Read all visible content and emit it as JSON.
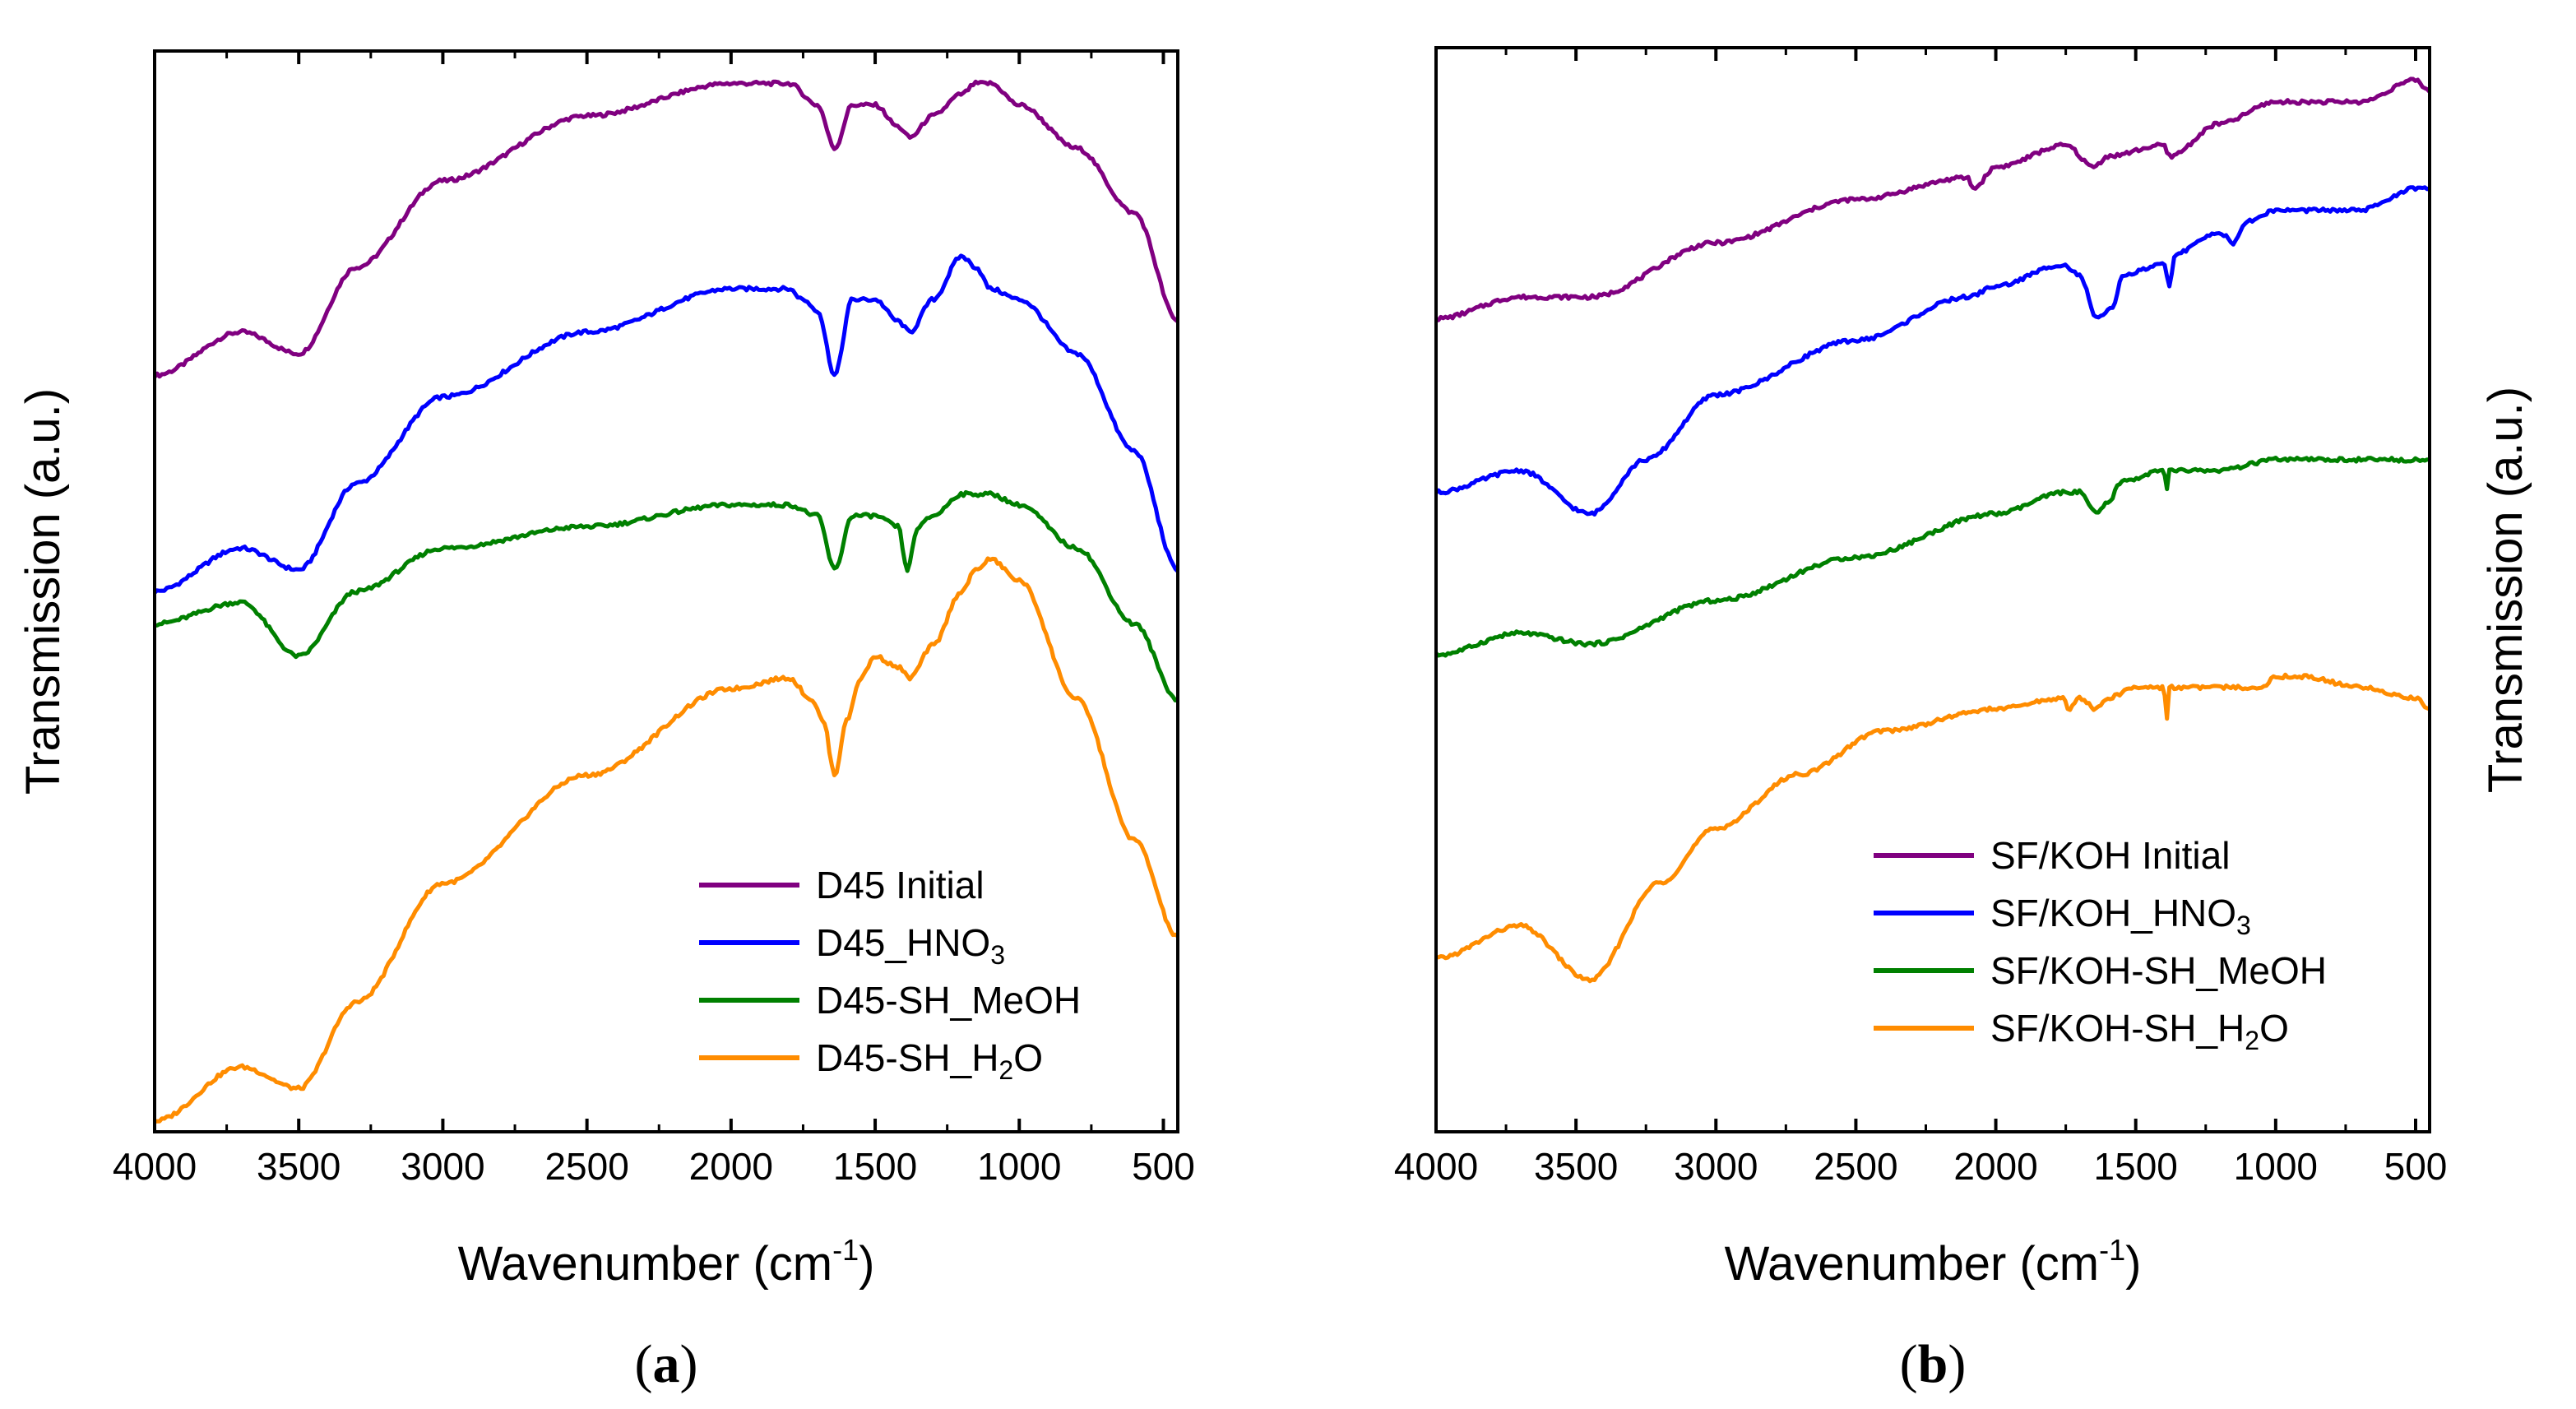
{
  "chart_data": [
    {
      "type": "line",
      "panel_label_open": "(",
      "panel_label_letter": "a",
      "panel_label_close": ")",
      "xlabel": "Wavenumber (cm",
      "xlabel_sup": "-1",
      "xlabel_close": ")",
      "ylabel": "Transmission (a.u.)",
      "ylabel_side": "left",
      "xlim": [
        4000,
        450
      ],
      "ylim": [
        0,
        100
      ],
      "x_ticks": [
        4000,
        3500,
        3000,
        2500,
        2000,
        1500,
        1000,
        500
      ],
      "x_tick_labels": [
        "4000",
        "3500",
        "3000",
        "2500",
        "2000",
        "1500",
        "1000",
        "500"
      ],
      "legend_position": "bottom-right",
      "series": [
        {
          "name": "D45 Initial",
          "name_main": "D45 Initial",
          "name_sub": "",
          "name_tail": "",
          "color": "#800080",
          "points": [
            [
              4000,
              70
            ],
            [
              3700,
              74
            ],
            [
              3500,
              72
            ],
            [
              3300,
              80
            ],
            [
              3000,
              88
            ],
            [
              2500,
              94
            ],
            [
              2000,
              97
            ],
            [
              1800,
              97
            ],
            [
              1700,
              95
            ],
            [
              1640,
              91
            ],
            [
              1580,
              95
            ],
            [
              1500,
              95
            ],
            [
              1420,
              93
            ],
            [
              1380,
              92
            ],
            [
              1300,
              94
            ],
            [
              1200,
              96
            ],
            [
              1150,
              97
            ],
            [
              1100,
              97
            ],
            [
              1000,
              95
            ],
            [
              800,
              91
            ],
            [
              600,
              85
            ],
            [
              450,
              75
            ]
          ]
        },
        {
          "name": "D45_HNO3",
          "name_main": "D45_HNO",
          "name_sub": "3",
          "name_tail": "",
          "color": "#0000ff",
          "points": [
            [
              4000,
              50
            ],
            [
              3700,
              54
            ],
            [
              3500,
              52
            ],
            [
              3300,
              60
            ],
            [
              3000,
              68
            ],
            [
              2500,
              74
            ],
            [
              2000,
              78
            ],
            [
              1800,
              78
            ],
            [
              1750,
              77
            ],
            [
              1700,
              76
            ],
            [
              1640,
              70
            ],
            [
              1580,
              77
            ],
            [
              1500,
              77
            ],
            [
              1420,
              75
            ],
            [
              1380,
              74
            ],
            [
              1300,
              77
            ],
            [
              1200,
              81
            ],
            [
              1150,
              80
            ],
            [
              1100,
              78
            ],
            [
              1000,
              77
            ],
            [
              800,
              72
            ],
            [
              600,
              63
            ],
            [
              450,
              52
            ]
          ]
        },
        {
          "name": "D45-SH_MeOH",
          "name_main": "D45-SH_MeOH",
          "name_sub": "",
          "name_tail": "",
          "color": "#008000",
          "points": [
            [
              4000,
              47
            ],
            [
              3700,
              49
            ],
            [
              3500,
              44
            ],
            [
              3300,
              50
            ],
            [
              3000,
              54
            ],
            [
              2500,
              56
            ],
            [
              2000,
              58
            ],
            [
              1800,
              58
            ],
            [
              1700,
              57
            ],
            [
              1640,
              52
            ],
            [
              1580,
              57
            ],
            [
              1500,
              57
            ],
            [
              1420,
              56
            ],
            [
              1390,
              52
            ],
            [
              1350,
              56
            ],
            [
              1300,
              57
            ],
            [
              1200,
              59
            ],
            [
              1150,
              59
            ],
            [
              1100,
              59
            ],
            [
              1000,
              58
            ],
            [
              800,
              54
            ],
            [
              600,
              47
            ],
            [
              450,
              40
            ]
          ]
        },
        {
          "name": "D45-SH_H2O",
          "name_main": "D45-SH_H",
          "name_sub": "2",
          "name_tail": "O",
          "color": "#ff8c00",
          "points": [
            [
              4000,
              1
            ],
            [
              3700,
              6
            ],
            [
              3500,
              4
            ],
            [
              3300,
              12
            ],
            [
              3000,
              23
            ],
            [
              2500,
              33
            ],
            [
              2000,
              41
            ],
            [
              1800,
              42
            ],
            [
              1720,
              40
            ],
            [
              1680,
              38
            ],
            [
              1640,
              33
            ],
            [
              1600,
              38
            ],
            [
              1550,
              42
            ],
            [
              1500,
              44
            ],
            [
              1420,
              43
            ],
            [
              1380,
              42
            ],
            [
              1300,
              45
            ],
            [
              1200,
              50
            ],
            [
              1150,
              52
            ],
            [
              1100,
              53
            ],
            [
              1000,
              51
            ],
            [
              800,
              40
            ],
            [
              600,
              27
            ],
            [
              450,
              18
            ]
          ]
        }
      ]
    },
    {
      "type": "line",
      "panel_label_open": "(",
      "panel_label_letter": "b",
      "panel_label_close": ")",
      "xlabel": "Wavenumber (cm",
      "xlabel_sup": "-1",
      "xlabel_close": ")",
      "ylabel": "Transmission (a.u.)",
      "ylabel_side": "right",
      "xlim": [
        4000,
        450
      ],
      "ylim": [
        0,
        100
      ],
      "x_ticks": [
        4000,
        3500,
        3000,
        2500,
        2000,
        1500,
        1000,
        500
      ],
      "x_tick_labels": [
        "4000",
        "3500",
        "3000",
        "2500",
        "2000",
        "1500",
        "1000",
        "500"
      ],
      "legend_position": "bottom-right",
      "series": [
        {
          "name": "SF/KOH Initial",
          "name_main": "SF/KOH Initial",
          "name_sub": "",
          "name_tail": "",
          "color": "#800080",
          "points": [
            [
              4000,
              75
            ],
            [
              3700,
              77
            ],
            [
              3450,
              77
            ],
            [
              3000,
              82
            ],
            [
              2500,
              86
            ],
            [
              2100,
              88
            ],
            [
              2080,
              87
            ],
            [
              2000,
              89
            ],
            [
              1750,
              91
            ],
            [
              1650,
              89
            ],
            [
              1600,
              90
            ],
            [
              1400,
              91
            ],
            [
              1380,
              90
            ],
            [
              1200,
              93
            ],
            [
              1000,
              95
            ],
            [
              700,
              95
            ],
            [
              500,
              97
            ],
            [
              450,
              96
            ]
          ]
        },
        {
          "name": "SF/KOH_HNO3",
          "name_main": "SF/KOH_HNO",
          "name_sub": "3",
          "name_tail": "",
          "color": "#0000ff",
          "points": [
            [
              4000,
              59
            ],
            [
              3700,
              61
            ],
            [
              3450,
              57
            ],
            [
              3250,
              62
            ],
            [
              3000,
              68
            ],
            [
              2500,
              73
            ],
            [
              2100,
              77
            ],
            [
              2000,
              78
            ],
            [
              1760,
              80
            ],
            [
              1700,
              79
            ],
            [
              1640,
              75
            ],
            [
              1580,
              76
            ],
            [
              1550,
              79
            ],
            [
              1400,
              80
            ],
            [
              1380,
              78
            ],
            [
              1360,
              81
            ],
            [
              1200,
              83
            ],
            [
              1150,
              82
            ],
            [
              1100,
              84
            ],
            [
              1000,
              85
            ],
            [
              700,
              85
            ],
            [
              500,
              87
            ],
            [
              450,
              87
            ]
          ]
        },
        {
          "name": "SF/KOH-SH_MeOH",
          "name_main": "SF/KOH-SH_MeOH",
          "name_sub": "",
          "name_tail": "",
          "color": "#008000",
          "points": [
            [
              4000,
              44
            ],
            [
              3700,
              46
            ],
            [
              3450,
              45
            ],
            [
              3000,
              49
            ],
            [
              2500,
              53
            ],
            [
              2000,
              57
            ],
            [
              1750,
              59
            ],
            [
              1700,
              59
            ],
            [
              1640,
              57
            ],
            [
              1600,
              58
            ],
            [
              1550,
              60
            ],
            [
              1400,
              61
            ],
            [
              1390,
              59
            ],
            [
              1380,
              61
            ],
            [
              1200,
              61
            ],
            [
              1000,
              62
            ],
            [
              700,
              62
            ],
            [
              450,
              62
            ]
          ]
        },
        {
          "name": "SF/KOH-SH_H2O",
          "name_main": "SF/KOH-SH_H",
          "name_sub": "2",
          "name_tail": "O",
          "color": "#ff8c00",
          "points": [
            [
              4000,
              16
            ],
            [
              3700,
              19
            ],
            [
              3450,
              14
            ],
            [
              3200,
              23
            ],
            [
              3000,
              28
            ],
            [
              2700,
              33
            ],
            [
              2400,
              37
            ],
            [
              2000,
              39
            ],
            [
              1760,
              40
            ],
            [
              1740,
              39
            ],
            [
              1700,
              40
            ],
            [
              1640,
              39
            ],
            [
              1600,
              40
            ],
            [
              1500,
              41
            ],
            [
              1400,
              41
            ],
            [
              1390,
              38
            ],
            [
              1380,
              41
            ],
            [
              1200,
              41
            ],
            [
              1050,
              41
            ],
            [
              1000,
              42
            ],
            [
              900,
              42
            ],
            [
              700,
              41
            ],
            [
              500,
              40
            ],
            [
              450,
              39
            ]
          ]
        }
      ]
    }
  ]
}
